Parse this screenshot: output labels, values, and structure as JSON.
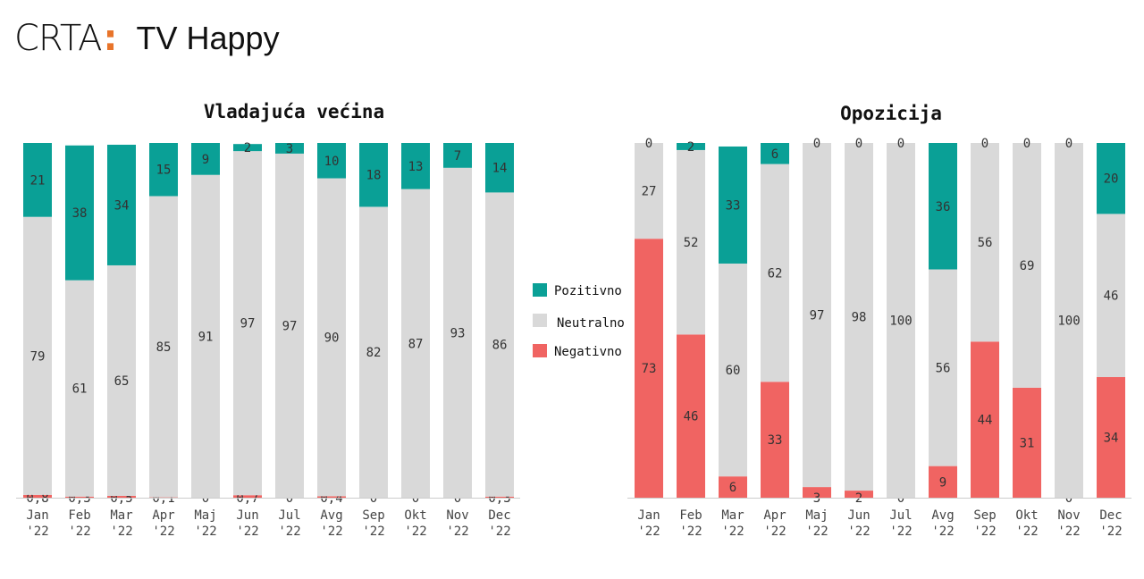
{
  "header": {
    "logo": "CRTA",
    "logo_colon": ":",
    "channel": "TV Happy"
  },
  "colors": {
    "positive": "#0aa096",
    "neutral": "#d9d9d9",
    "negative": "#f06462",
    "accent": "#e8742a"
  },
  "legend": [
    "Pozitivno",
    "Neutralno",
    "Negativno"
  ],
  "chart_data": [
    {
      "type": "bar",
      "stacked": true,
      "title": "Vladajuća većina",
      "categories": [
        "Jan '22",
        "Feb '22",
        "Mar '22",
        "Apr '22",
        "Maj '22",
        "Jun '22",
        "Jul '22",
        "Avg '22",
        "Sep '22",
        "Okt '22",
        "Nov '22",
        "Dec '22"
      ],
      "series": [
        {
          "name": "Negativno",
          "values": [
            0.8,
            0.3,
            0.5,
            0.1,
            0,
            0.7,
            0,
            0.4,
            0,
            0,
            0,
            0.3
          ],
          "labels": [
            "0,8",
            "0,3",
            "0,5",
            "0,1",
            "0",
            "0,7",
            "0",
            "0,4",
            "0",
            "0",
            "0",
            "0,3"
          ]
        },
        {
          "name": "Neutralno",
          "values": [
            79,
            61,
            65,
            85,
            91,
            97,
            97,
            90,
            82,
            87,
            93,
            86
          ],
          "labels": [
            "79",
            "61",
            "65",
            "85",
            "91",
            "97",
            "97",
            "90",
            "82",
            "87",
            "93",
            "86"
          ]
        },
        {
          "name": "Pozitivno",
          "values": [
            21,
            38,
            34,
            15,
            9,
            2,
            3,
            10,
            18,
            13,
            7,
            14
          ],
          "labels": [
            "21",
            "38",
            "34",
            "15",
            "9",
            "2",
            "3",
            "10",
            "18",
            "13",
            "7",
            "14"
          ]
        }
      ],
      "ylim": [
        0,
        100
      ]
    },
    {
      "type": "bar",
      "stacked": true,
      "title": "Opozicija",
      "categories": [
        "Jan '22",
        "Feb '22",
        "Mar '22",
        "Apr '22",
        "Maj '22",
        "Jun '22",
        "Jul '22",
        "Avg '22",
        "Sep '22",
        "Okt '22",
        "Nov '22",
        "Dec '22"
      ],
      "series": [
        {
          "name": "Negativno",
          "values": [
            73,
            46,
            6,
            33,
            3,
            2,
            0,
            9,
            44,
            31,
            0,
            34
          ],
          "labels": [
            "73",
            "46",
            "6",
            "33",
            "3",
            "2",
            "0",
            "9",
            "44",
            "31",
            "0",
            "34"
          ]
        },
        {
          "name": "Neutralno",
          "values": [
            27,
            52,
            60,
            62,
            97,
            98,
            100,
            56,
            56,
            69,
            100,
            46
          ],
          "labels": [
            "27",
            "52",
            "60",
            "62",
            "97",
            "98",
            "100",
            "56",
            "56",
            "69",
            "100",
            "46"
          ]
        },
        {
          "name": "Pozitivno",
          "values": [
            0,
            2,
            33,
            6,
            0,
            0,
            0,
            36,
            0,
            0,
            0,
            20
          ],
          "labels": [
            "0",
            "2",
            "33",
            "6",
            "0",
            "0",
            "0",
            "36",
            "0",
            "0",
            "0",
            "20"
          ]
        }
      ],
      "ylim": [
        0,
        100
      ]
    }
  ]
}
